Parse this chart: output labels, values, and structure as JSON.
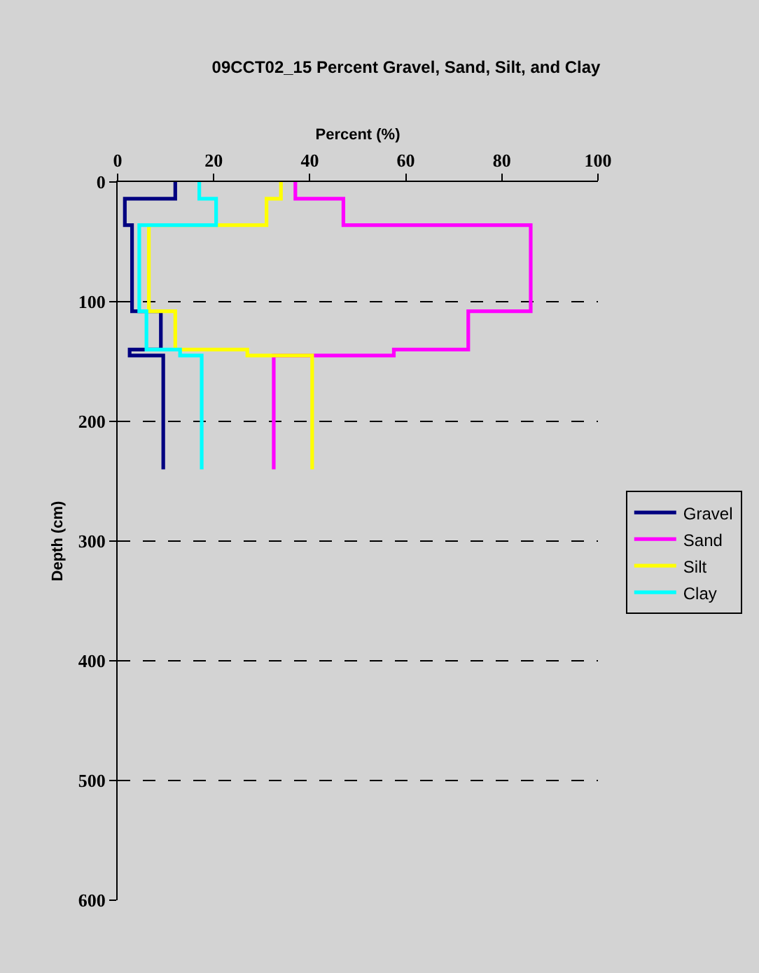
{
  "chart_data": {
    "type": "step",
    "title": "09CCT02_15 Percent Gravel, Sand, Silt, and Clay",
    "xlabel": "Percent (%)",
    "ylabel": "Depth (cm)",
    "orientation": "horizontal",
    "x": [
      0,
      14,
      36,
      108,
      140,
      145,
      240
    ],
    "series": [
      {
        "name": "Gravel",
        "color": "#000080",
        "values": [
          12,
          1.5,
          3,
          9,
          2.5,
          9.5,
          9.5
        ]
      },
      {
        "name": "Sand",
        "color": "#ff00ff",
        "values": [
          37,
          47,
          86,
          73,
          57.5,
          32.5,
          32.5
        ]
      },
      {
        "name": "Silt",
        "color": "#ffff00",
        "values": [
          34,
          31,
          6.5,
          12,
          27,
          40.5,
          40.5
        ]
      },
      {
        "name": "Clay",
        "color": "#00ffff",
        "values": [
          17,
          20.5,
          4.5,
          6,
          13,
          17.5,
          17.5
        ]
      }
    ],
    "xlim": [
      0,
      100
    ],
    "xticks": [
      0,
      20,
      40,
      60,
      80,
      100
    ],
    "ylim": [
      600,
      0
    ],
    "yticks": [
      0,
      100,
      200,
      300,
      400,
      500,
      600
    ],
    "grid": "y",
    "legend": "right"
  }
}
